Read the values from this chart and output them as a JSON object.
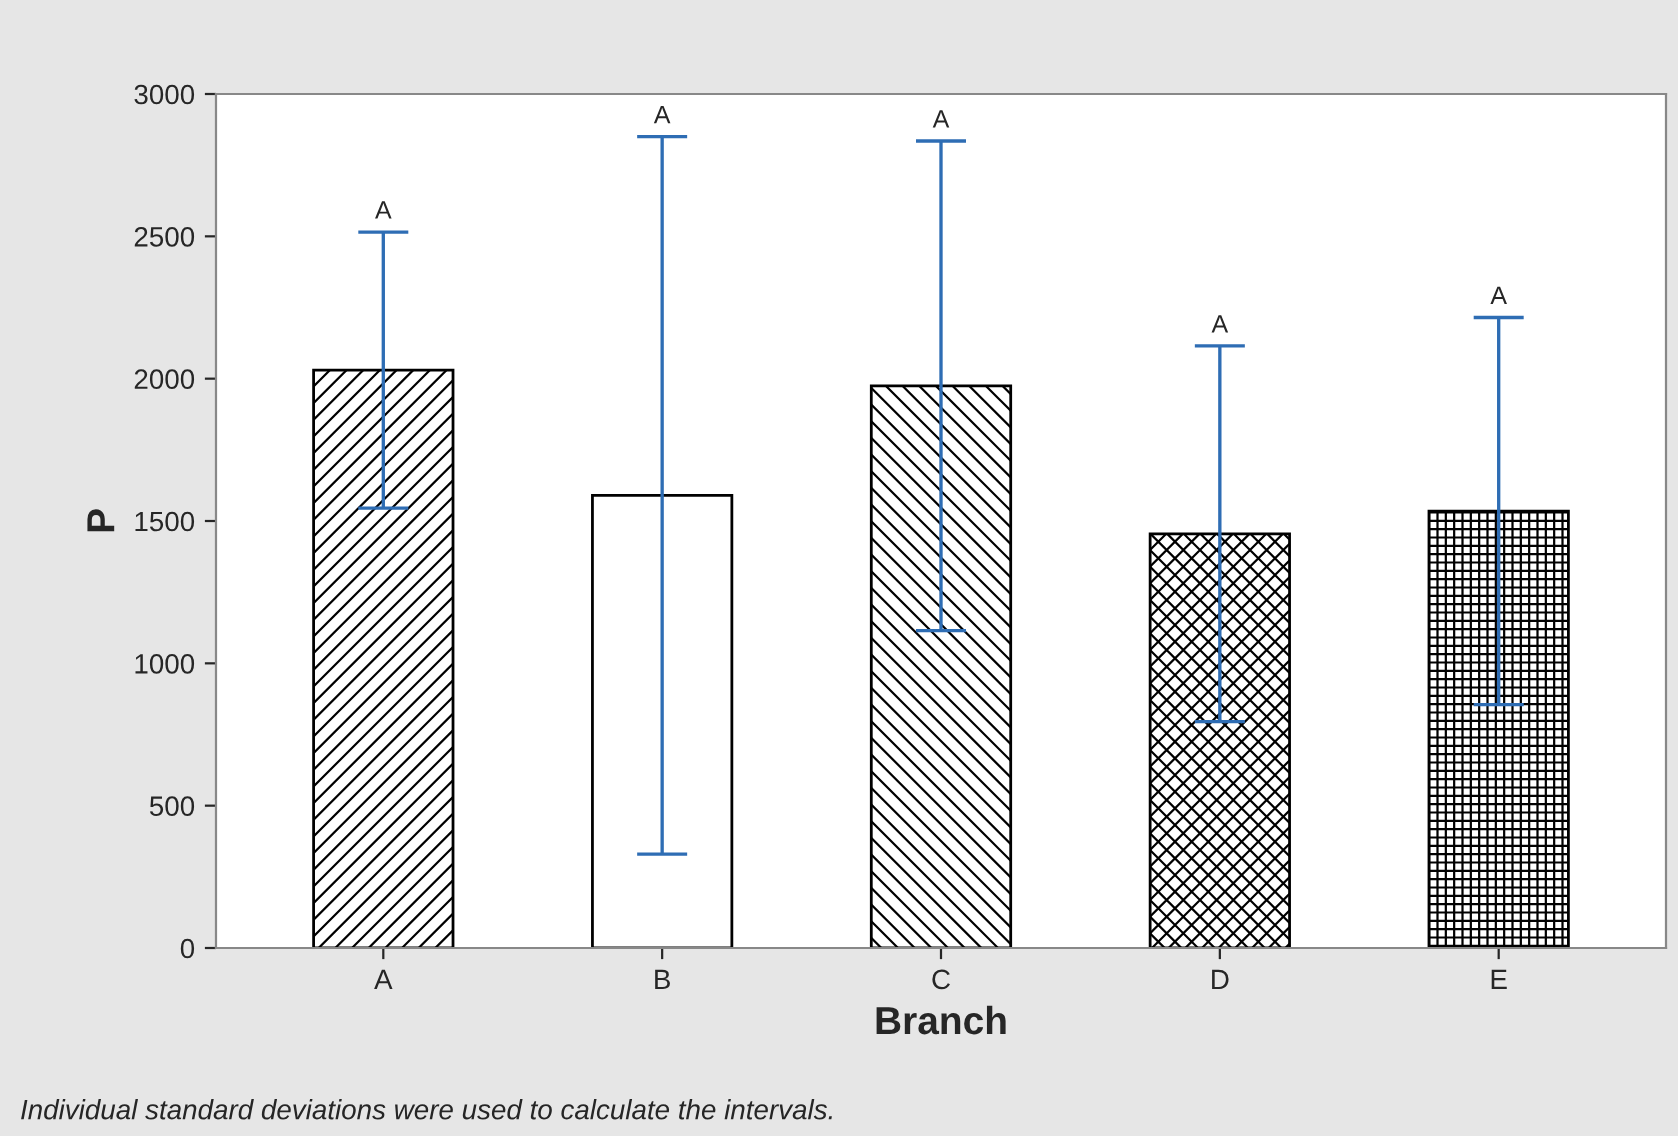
{
  "chart_data": {
    "type": "bar",
    "xlabel": "Branch",
    "ylabel": "P",
    "categories": [
      "A",
      "B",
      "C",
      "D",
      "E"
    ],
    "values": [
      2030,
      1590,
      1975,
      1455,
      1535
    ],
    "errors": [
      485,
      1260,
      860,
      660,
      680
    ],
    "colors": [
      "#000000",
      "#ffffff",
      "#000000",
      "#000000",
      "#000000"
    ],
    "ylim": [
      0,
      3000
    ],
    "yticks": [
      0,
      500,
      1000,
      1500,
      2000,
      2500,
      3000
    ],
    "grid": false,
    "legend": false,
    "annotations": [
      {
        "text": "A",
        "x": "A",
        "y": 2515
      },
      {
        "text": "A",
        "x": "B",
        "y": 2850
      },
      {
        "text": "A",
        "x": "C",
        "y": 2835
      },
      {
        "text": "A",
        "x": "D",
        "y": 2115
      },
      {
        "text": "A",
        "x": "E",
        "y": 2215
      },
      "Individual standard deviations were used to calculate the intervals."
    ]
  }
}
